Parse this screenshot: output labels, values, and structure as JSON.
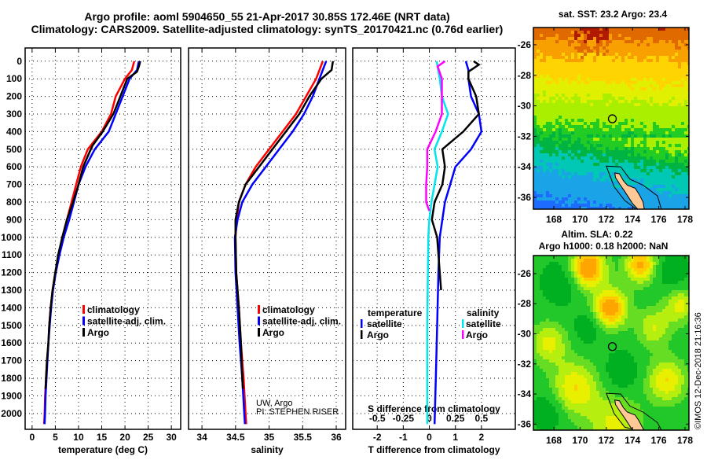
{
  "title": {
    "line1": "Argo profile: aoml 5904650_55 21-Apr-2017 30.85S 172.46E (NRT data)",
    "line2": "Climatology: CARS2009. Satellite-adjusted climatology: synTS_20170421.nc (0.76d earlier)"
  },
  "depth_axis": {
    "ticks": [
      0,
      100,
      200,
      300,
      400,
      500,
      600,
      700,
      800,
      900,
      1000,
      1100,
      1200,
      1300,
      1400,
      1500,
      1600,
      1700,
      1800,
      1900,
      2000
    ],
    "ylim": [
      -75,
      2090
    ]
  },
  "chart_data": [
    {
      "type": "line",
      "id": "temperature",
      "xlabel": "temperature (deg C)",
      "xlim": [
        -1.5,
        32
      ],
      "xticks": [
        0,
        5,
        10,
        15,
        20,
        25,
        30
      ],
      "legend": [
        "climatology",
        "satellite-adj. clim.",
        "Argo"
      ],
      "series": [
        {
          "name": "climatology",
          "color": "#ff0000",
          "points": [
            [
              22,
              0
            ],
            [
              21.5,
              50
            ],
            [
              20,
              100
            ],
            [
              18,
              200
            ],
            [
              17,
              300
            ],
            [
              15,
              400
            ],
            [
              12,
              500
            ],
            [
              10.5,
              600
            ],
            [
              9.5,
              700
            ],
            [
              8.5,
              800
            ],
            [
              7.5,
              900
            ],
            [
              6.5,
              1000
            ],
            [
              5.7,
              1100
            ],
            [
              5,
              1200
            ],
            [
              4.4,
              1300
            ],
            [
              4,
              1400
            ],
            [
              3.7,
              1500
            ],
            [
              3.5,
              1600
            ],
            [
              3.2,
              1700
            ],
            [
              3,
              1800
            ],
            [
              2.8,
              1900
            ],
            [
              2.7,
              2000
            ],
            [
              2.6,
              2060
            ]
          ]
        },
        {
          "name": "satellite-adj. clim.",
          "color": "#0000ff",
          "points": [
            [
              23,
              0
            ],
            [
              22.6,
              50
            ],
            [
              21,
              100
            ],
            [
              19.5,
              200
            ],
            [
              18,
              300
            ],
            [
              16.5,
              400
            ],
            [
              13.5,
              500
            ],
            [
              11.5,
              600
            ],
            [
              10,
              700
            ],
            [
              9,
              800
            ],
            [
              8,
              900
            ],
            [
              6.8,
              1000
            ],
            [
              5.9,
              1100
            ],
            [
              5.1,
              1200
            ],
            [
              4.5,
              1300
            ],
            [
              4.1,
              1400
            ],
            [
              3.8,
              1500
            ],
            [
              3.5,
              1600
            ],
            [
              3.3,
              1700
            ],
            [
              3.1,
              1800
            ],
            [
              2.9,
              1900
            ],
            [
              2.8,
              2000
            ],
            [
              2.7,
              2060
            ]
          ]
        },
        {
          "name": "Argo",
          "color": "#000000",
          "points": [
            [
              23.3,
              0
            ],
            [
              23,
              30
            ],
            [
              22.6,
              60
            ],
            [
              20.5,
              100
            ],
            [
              19,
              200
            ],
            [
              17.5,
              300
            ],
            [
              15.2,
              400
            ],
            [
              13,
              480
            ],
            [
              12.3,
              520
            ],
            [
              11,
              600
            ],
            [
              10,
              700
            ],
            [
              8.8,
              800
            ],
            [
              7.5,
              900
            ],
            [
              6.5,
              1000
            ],
            [
              5.6,
              1100
            ],
            [
              5,
              1200
            ],
            [
              4.4,
              1300
            ],
            [
              4,
              1400
            ],
            [
              3.7,
              1500
            ],
            [
              3.5,
              1600
            ],
            [
              3.2,
              1700
            ],
            [
              3,
              1800
            ],
            [
              2.9,
              1860
            ]
          ]
        }
      ]
    },
    {
      "type": "line",
      "id": "salinity",
      "xlabel": "salinity",
      "xlim": [
        33.8,
        36.14
      ],
      "xticks": [
        34,
        34.5,
        35,
        35.5,
        36
      ],
      "legend": [
        "climatology",
        "satellite-adj. clim.",
        "Argo"
      ],
      "annotation": [
        "UW, Argo",
        "PI: STEPHEN RISER"
      ],
      "series": [
        {
          "name": "climatology",
          "color": "#ff0000",
          "points": [
            [
              35.8,
              0
            ],
            [
              35.75,
              50
            ],
            [
              35.7,
              100
            ],
            [
              35.55,
              200
            ],
            [
              35.4,
              300
            ],
            [
              35.2,
              400
            ],
            [
              35.0,
              500
            ],
            [
              34.8,
              600
            ],
            [
              34.65,
              700
            ],
            [
              34.55,
              800
            ],
            [
              34.52,
              900
            ],
            [
              34.5,
              1000
            ],
            [
              34.51,
              1200
            ],
            [
              34.55,
              1400
            ],
            [
              34.58,
              1600
            ],
            [
              34.62,
              1800
            ],
            [
              34.65,
              2000
            ],
            [
              34.66,
              2060
            ]
          ]
        },
        {
          "name": "satellite-adj. clim.",
          "color": "#0000ff",
          "points": [
            [
              35.85,
              0
            ],
            [
              35.8,
              50
            ],
            [
              35.75,
              100
            ],
            [
              35.65,
              200
            ],
            [
              35.52,
              300
            ],
            [
              35.35,
              400
            ],
            [
              35.15,
              500
            ],
            [
              34.95,
              600
            ],
            [
              34.75,
              700
            ],
            [
              34.6,
              800
            ],
            [
              34.53,
              900
            ],
            [
              34.49,
              1000
            ],
            [
              34.5,
              1200
            ],
            [
              34.53,
              1400
            ],
            [
              34.56,
              1600
            ],
            [
              34.6,
              1800
            ],
            [
              34.63,
              2000
            ],
            [
              34.64,
              2060
            ]
          ]
        },
        {
          "name": "Argo",
          "color": "#000000",
          "points": [
            [
              35.95,
              0
            ],
            [
              35.93,
              50
            ],
            [
              35.78,
              100
            ],
            [
              35.6,
              200
            ],
            [
              35.45,
              300
            ],
            [
              35.25,
              400
            ],
            [
              35.05,
              500
            ],
            [
              34.85,
              600
            ],
            [
              34.65,
              700
            ],
            [
              34.55,
              800
            ],
            [
              34.5,
              900
            ],
            [
              34.5,
              1000
            ],
            [
              34.51,
              1200
            ],
            [
              34.55,
              1400
            ],
            [
              34.58,
              1600
            ],
            [
              34.6,
              1800
            ],
            [
              34.61,
              1860
            ]
          ]
        }
      ]
    },
    {
      "type": "line",
      "id": "differences",
      "xlabel": "T difference from climatology",
      "xlim": [
        -2.94,
        3.3
      ],
      "xticks": [
        -2,
        -1,
        0,
        1,
        2
      ],
      "s_xlabel": "S difference from climatology",
      "s_xlim": [
        -0.735,
        0.825
      ],
      "s_xticks": [
        -0.5,
        -0.25,
        0,
        0.25,
        0.5
      ],
      "s_ticklabels": [
        "-0.5",
        "-0.25",
        "0",
        "0.25",
        "0.5"
      ],
      "legend": {
        "temperature_title": "temperature",
        "salinity_title": "salinity",
        "t_items": [
          "satellite",
          "Argo"
        ],
        "s_items": [
          "satellite",
          "Argo"
        ]
      },
      "series": [
        {
          "name": "T satellite",
          "axis": "T",
          "color": "#0000ff",
          "points": [
            [
              1.4,
              0
            ],
            [
              1.5,
              50
            ],
            [
              1.5,
              100
            ],
            [
              1.6,
              200
            ],
            [
              1.9,
              300
            ],
            [
              2.0,
              400
            ],
            [
              1.6,
              500
            ],
            [
              1.0,
              600
            ],
            [
              0.8,
              700
            ],
            [
              0.6,
              800
            ],
            [
              0.5,
              900
            ],
            [
              0.4,
              1000
            ],
            [
              0.35,
              1200
            ],
            [
              0.3,
              1500
            ],
            [
              0.25,
              1800
            ],
            [
              0.2,
              2060
            ]
          ]
        },
        {
          "name": "T Argo",
          "axis": "T",
          "color": "#000000",
          "points": [
            [
              1.7,
              0
            ],
            [
              1.9,
              20
            ],
            [
              1.5,
              60
            ],
            [
              1.5,
              100
            ],
            [
              1.8,
              200
            ],
            [
              1.9,
              300
            ],
            [
              1.3,
              400
            ],
            [
              0.9,
              450
            ],
            [
              0.5,
              500
            ],
            [
              0.6,
              600
            ],
            [
              0.5,
              700
            ],
            [
              0.2,
              800
            ],
            [
              0.1,
              900
            ],
            [
              0.3,
              1000
            ],
            [
              0.4,
              1200
            ],
            [
              0.45,
              1300
            ]
          ]
        },
        {
          "name": "S satellite",
          "axis": "S",
          "color": "#00e5ee",
          "points": [
            [
              0.07,
              0
            ],
            [
              0.1,
              100
            ],
            [
              0.12,
              200
            ],
            [
              0.18,
              300
            ],
            [
              0.12,
              400
            ],
            [
              0.05,
              500
            ],
            [
              0.08,
              600
            ],
            [
              0.05,
              700
            ],
            [
              0.02,
              800
            ],
            [
              0.0,
              900
            ],
            [
              -0.01,
              1000
            ],
            [
              -0.02,
              1500
            ],
            [
              -0.02,
              2060
            ]
          ]
        },
        {
          "name": "S Argo",
          "axis": "S",
          "color": "#ff00ff",
          "points": [
            [
              0.15,
              0
            ],
            [
              0.08,
              30
            ],
            [
              0.12,
              100
            ],
            [
              0.12,
              200
            ],
            [
              0.12,
              300
            ],
            [
              0.06,
              400
            ],
            [
              -0.02,
              500
            ],
            [
              -0.02,
              600
            ],
            [
              -0.03,
              700
            ],
            [
              -0.03,
              800
            ],
            [
              0,
              850
            ]
          ]
        }
      ]
    }
  ],
  "maps": [
    {
      "id": "sst",
      "title": "sat. SST: 23.2 Argo: 23.4",
      "lon_ticks": [
        168,
        170,
        172,
        174,
        176,
        178
      ],
      "lat_ticks": [
        -26,
        -28,
        -30,
        -32,
        -34,
        -36
      ],
      "argo_position": {
        "lon": 172.46,
        "lat": -30.85
      }
    },
    {
      "id": "sla",
      "title_line1": "Altim. SLA: 0.22",
      "title_line2": "Argo h1000: 0.18 h2000: NaN",
      "lon_ticks": [
        168,
        170,
        172,
        174,
        176,
        178
      ],
      "lat_ticks": [
        -26,
        -28,
        -30,
        -32,
        -34,
        -36
      ],
      "argo_position": {
        "lon": 172.46,
        "lat": -30.85
      }
    }
  ],
  "credit": "©IMOS 12-Dec-2018 21:16:36"
}
